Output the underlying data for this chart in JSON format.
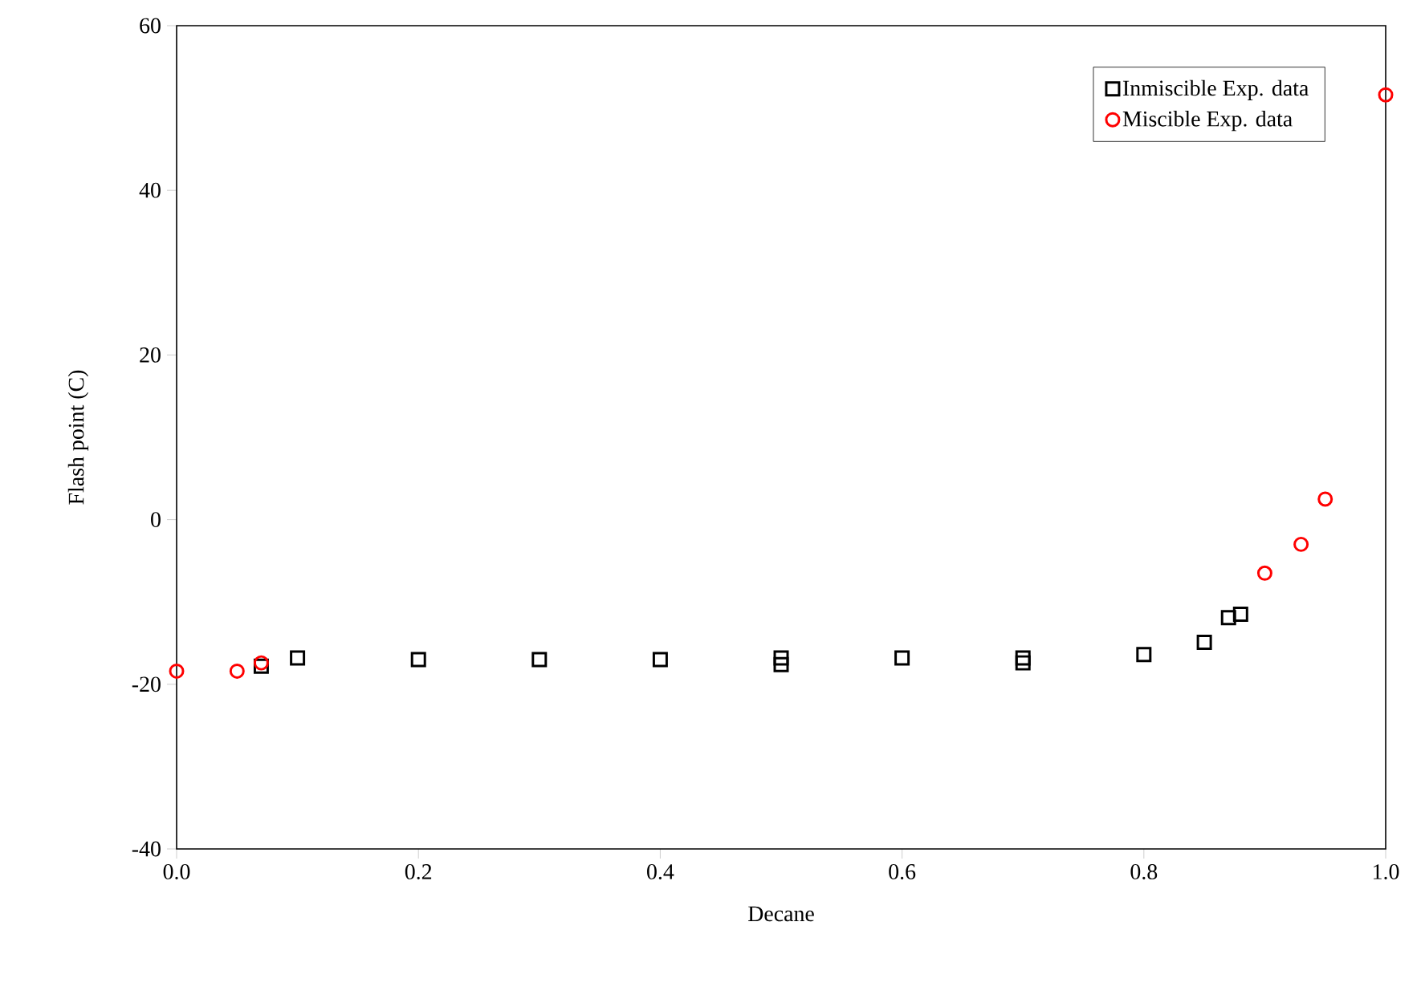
{
  "chart_data": {
    "type": "scatter",
    "xlabel": "Decane",
    "ylabel": "Flash point (C)",
    "xlim": [
      0,
      1
    ],
    "ylim": [
      -40,
      60
    ],
    "xticks": [
      {
        "value": 0,
        "label": "0.0"
      },
      {
        "value": 0.2,
        "label": "0.2"
      },
      {
        "value": 0.4,
        "label": "0.4"
      },
      {
        "value": 0.6,
        "label": "0.6"
      },
      {
        "value": 0.8,
        "label": "0.8"
      },
      {
        "value": 1,
        "label": "1.0"
      }
    ],
    "yticks": [
      -40,
      -20,
      0,
      20,
      40,
      60
    ],
    "grid": false,
    "legend": "top right",
    "series": [
      {
        "name": "Inmiscible Exp. data",
        "color": "#000000",
        "marker": "square",
        "x": [
          0.07,
          0.1,
          0.2,
          0.3,
          0.4,
          0.5,
          0.5,
          0.6,
          0.7,
          0.7,
          0.8,
          0.85,
          0.87,
          0.88
        ],
        "values": [
          -17.8,
          -16.8,
          -17.0,
          -17.0,
          -17.0,
          -16.8,
          -17.6,
          -16.8,
          -16.8,
          -17.4,
          -16.4,
          -14.9,
          -11.9,
          -11.5
        ]
      },
      {
        "name": "Miscible Exp. data",
        "color": "#ff0000",
        "marker": "circle",
        "x": [
          0,
          0.05,
          0.07,
          0.9,
          0.93,
          0.95,
          1.0
        ],
        "values": [
          -18.4,
          -18.4,
          -17.4,
          -6.5,
          -3.0,
          2.5,
          51.6
        ]
      }
    ]
  }
}
